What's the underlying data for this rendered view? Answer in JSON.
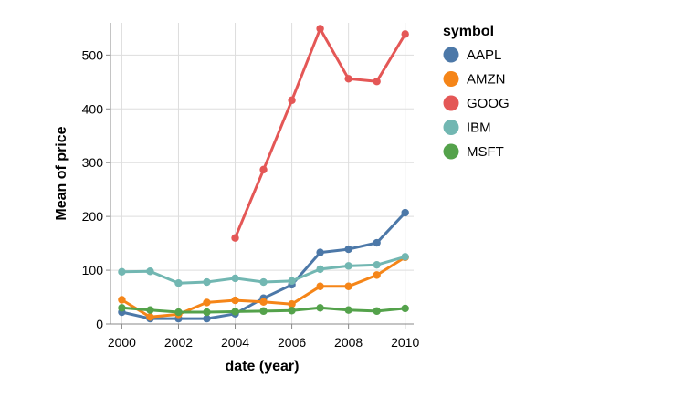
{
  "chart_data": {
    "type": "line",
    "title": "",
    "xlabel": "date (year)",
    "ylabel": "Mean of price",
    "xlim": [
      1999.6,
      2010.3
    ],
    "ylim": [
      0,
      560
    ],
    "x_ticks": [
      2000,
      2002,
      2004,
      2006,
      2008,
      2010
    ],
    "x_tick_labels": [
      "2000",
      "2002",
      "2004",
      "2006",
      "2008",
      "2010"
    ],
    "y_ticks": [
      0,
      100,
      200,
      300,
      400,
      500
    ],
    "y_tick_labels": [
      "0",
      "100",
      "200",
      "300",
      "400",
      "500"
    ],
    "grid": true,
    "legend": {
      "title": "symbol",
      "position": "right"
    },
    "series": [
      {
        "name": "AAPL",
        "color": "#4c78a8",
        "x": [
          2000,
          2001,
          2002,
          2003,
          2004,
          2005,
          2006,
          2007,
          2008,
          2009,
          2010
        ],
        "values": [
          22,
          10,
          10,
          10,
          19,
          48,
          73,
          133,
          139,
          151,
          207
        ]
      },
      {
        "name": "AMZN",
        "color": "#f58518",
        "x": [
          2000,
          2001,
          2002,
          2003,
          2004,
          2005,
          2006,
          2007,
          2008,
          2009,
          2010
        ],
        "values": [
          45,
          13,
          18,
          40,
          44,
          41,
          37,
          70,
          70,
          91,
          124
        ]
      },
      {
        "name": "GOOG",
        "color": "#e45756",
        "x": [
          2004,
          2005,
          2006,
          2007,
          2008,
          2009,
          2010
        ],
        "values": [
          160,
          287,
          416,
          549,
          456,
          451,
          539
        ]
      },
      {
        "name": "IBM",
        "color": "#72b7b2",
        "x": [
          2000,
          2001,
          2002,
          2003,
          2004,
          2005,
          2006,
          2007,
          2008,
          2009,
          2010
        ],
        "values": [
          97,
          98,
          76,
          78,
          85,
          78,
          80,
          102,
          108,
          110,
          125
        ]
      },
      {
        "name": "MSFT",
        "color": "#54a24b",
        "x": [
          2000,
          2001,
          2002,
          2003,
          2004,
          2005,
          2006,
          2007,
          2008,
          2009,
          2010
        ],
        "values": [
          30,
          26,
          22,
          22,
          23,
          24,
          25,
          30,
          26,
          24,
          29
        ]
      }
    ]
  }
}
